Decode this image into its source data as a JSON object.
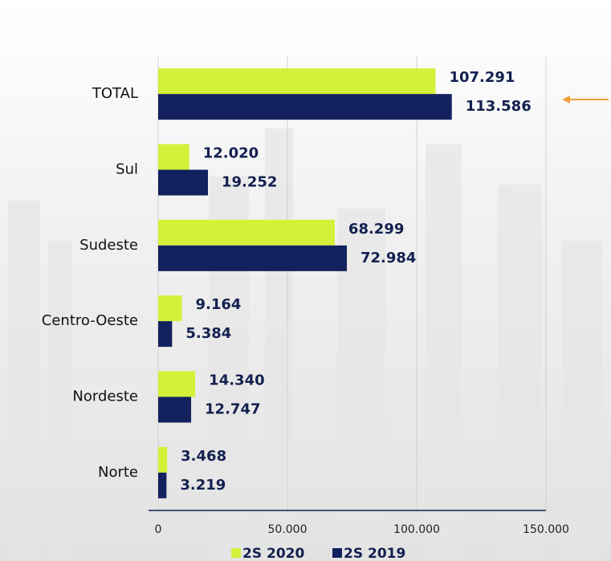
{
  "chart_data": {
    "type": "bar",
    "orientation": "horizontal",
    "categories": [
      "TOTAL",
      "Sul",
      "Sudeste",
      "Centro-Oeste",
      "Nordeste",
      "Norte"
    ],
    "series": [
      {
        "name": "2S 2020",
        "color": "#d4f13a",
        "values": [
          107291,
          12020,
          68299,
          9164,
          14340,
          3468
        ],
        "value_labels": [
          "107.291",
          "12.020",
          "68.299",
          "9.164",
          "14.340",
          "3.468"
        ]
      },
      {
        "name": "2S 2019",
        "color": "#13215e",
        "values": [
          113586,
          19252,
          72984,
          5384,
          12747,
          3219
        ],
        "value_labels": [
          "113.586",
          "19.252",
          "72.984",
          "5.384",
          "12.747",
          "3.219"
        ]
      }
    ],
    "xlim": [
      0,
      150000
    ],
    "xticks": [
      0,
      {
        "value": 50000,
        "label": "50.000"
      },
      {
        "value": 100000,
        "label": "100.000"
      },
      {
        "value": 150000,
        "label": "150.000"
      }
    ],
    "grid": true
  }
}
